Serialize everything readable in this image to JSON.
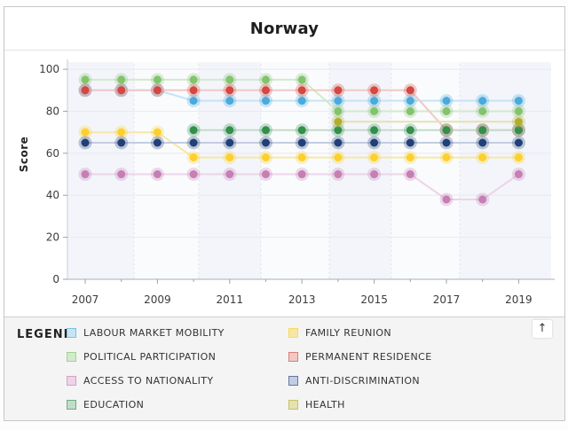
{
  "ui": {
    "title": "Norway",
    "legend_label": "LEGEND",
    "scroll_top_icon": "↑"
  },
  "chart_data": {
    "type": "line",
    "title": "Norway",
    "xlabel": "",
    "ylabel": "Score",
    "ylim": [
      0,
      100
    ],
    "x_range": [
      2007,
      2019
    ],
    "y_ticks": [
      0,
      20,
      40,
      60,
      80,
      100
    ],
    "x_tick_labels": [
      "2007",
      "2009",
      "2011",
      "2013",
      "2015",
      "2017",
      "2019"
    ],
    "grid": true,
    "legend_position": "bottom",
    "series": [
      {
        "name": "LABOUR MARKET MOBILITY",
        "color": "#49aadc",
        "light": "#c6e4f4",
        "points": [
          [
            2007,
            90
          ],
          [
            2008,
            90
          ],
          [
            2009,
            90
          ],
          [
            2010,
            85
          ],
          [
            2011,
            85
          ],
          [
            2012,
            85
          ],
          [
            2013,
            85
          ],
          [
            2014,
            85
          ],
          [
            2015,
            85
          ],
          [
            2016,
            85
          ],
          [
            2017,
            85
          ],
          [
            2018,
            85
          ],
          [
            2019,
            85
          ]
        ]
      },
      {
        "name": "FAMILY REUNION",
        "color": "#fdd02f",
        "light": "#f6e8a4",
        "points": [
          [
            2007,
            70
          ],
          [
            2008,
            70
          ],
          [
            2009,
            70
          ],
          [
            2010,
            58
          ],
          [
            2011,
            58
          ],
          [
            2012,
            58
          ],
          [
            2013,
            58
          ],
          [
            2014,
            58
          ],
          [
            2015,
            58
          ],
          [
            2016,
            58
          ],
          [
            2017,
            58
          ],
          [
            2018,
            58
          ],
          [
            2019,
            58
          ]
        ]
      },
      {
        "name": "POLITICAL PARTICIPATION",
        "color": "#84c36d",
        "light": "#d4e9cc",
        "points": [
          [
            2007,
            95
          ],
          [
            2008,
            95
          ],
          [
            2009,
            95
          ],
          [
            2010,
            95
          ],
          [
            2011,
            95
          ],
          [
            2012,
            95
          ],
          [
            2013,
            95
          ],
          [
            2014,
            80
          ],
          [
            2015,
            80
          ],
          [
            2016,
            80
          ],
          [
            2017,
            80
          ],
          [
            2018,
            80
          ],
          [
            2019,
            80
          ]
        ]
      },
      {
        "name": "PERMANENT RESIDENCE",
        "color": "#d5473f",
        "light": "#efc9c7",
        "points": [
          [
            2007,
            90
          ],
          [
            2008,
            90
          ],
          [
            2009,
            90
          ],
          [
            2010,
            90
          ],
          [
            2011,
            90
          ],
          [
            2012,
            90
          ],
          [
            2013,
            90
          ],
          [
            2014,
            90
          ],
          [
            2015,
            90
          ],
          [
            2016,
            90
          ],
          [
            2017,
            71
          ],
          [
            2018,
            71
          ],
          [
            2019,
            71
          ]
        ]
      },
      {
        "name": "ACCESS TO NATIONALITY",
        "color": "#c67fb5",
        "light": "#eed4e6",
        "points": [
          [
            2007,
            50
          ],
          [
            2008,
            50
          ],
          [
            2009,
            50
          ],
          [
            2010,
            50
          ],
          [
            2011,
            50
          ],
          [
            2012,
            50
          ],
          [
            2013,
            50
          ],
          [
            2014,
            50
          ],
          [
            2015,
            50
          ],
          [
            2016,
            50
          ],
          [
            2017,
            38
          ],
          [
            2018,
            38
          ],
          [
            2019,
            50
          ]
        ]
      },
      {
        "name": "ANTI-DISCRIMINATION",
        "color": "#223f77",
        "light": "#c3cde2",
        "points": [
          [
            2007,
            65
          ],
          [
            2008,
            65
          ],
          [
            2009,
            65
          ],
          [
            2010,
            65
          ],
          [
            2011,
            65
          ],
          [
            2012,
            65
          ],
          [
            2013,
            65
          ],
          [
            2014,
            65
          ],
          [
            2015,
            65
          ],
          [
            2016,
            65
          ],
          [
            2017,
            65
          ],
          [
            2018,
            65
          ],
          [
            2019,
            65
          ]
        ]
      },
      {
        "name": "EDUCATION",
        "color": "#338f4c",
        "light": "#c3dcc9",
        "points": [
          [
            2010,
            71
          ],
          [
            2011,
            71
          ],
          [
            2012,
            71
          ],
          [
            2013,
            71
          ],
          [
            2014,
            71
          ],
          [
            2015,
            71
          ],
          [
            2016,
            71
          ],
          [
            2017,
            71
          ],
          [
            2018,
            71
          ],
          [
            2019,
            71
          ]
        ]
      },
      {
        "name": "HEALTH",
        "color": "#b1ae2e",
        "light": "#e4e2b2",
        "points": [
          [
            2014,
            75
          ],
          [
            2019,
            75
          ]
        ]
      }
    ]
  }
}
